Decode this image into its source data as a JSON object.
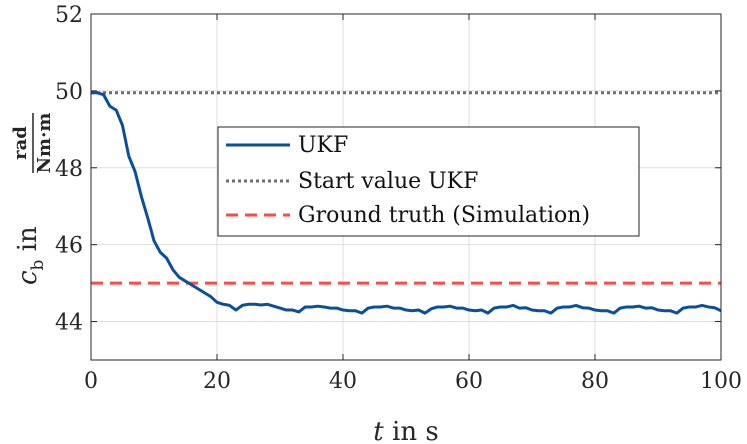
{
  "chart_data": {
    "type": "line",
    "xlabel": {
      "var": "t",
      "rest": " in s"
    },
    "ylabel": {
      "var": "c",
      "sub": "b",
      "mid": " in ",
      "frac_num": "rad",
      "frac_den": "Nm·m"
    },
    "xlim": [
      0,
      100
    ],
    "ylim": [
      43,
      52
    ],
    "xticks": [
      0,
      20,
      40,
      60,
      80,
      100
    ],
    "yticks": [
      44,
      46,
      48,
      50,
      52
    ],
    "xtick_labels": [
      "0",
      "20",
      "40",
      "60",
      "80",
      "100"
    ],
    "ytick_labels": [
      "44",
      "46",
      "48",
      "50",
      "52"
    ],
    "grid": true,
    "legend_position": "center",
    "series": [
      {
        "name": "UKF",
        "style": "solid",
        "color": "#0b4f9c",
        "x": [
          0,
          1,
          2,
          3,
          4,
          5,
          6,
          7,
          8,
          9,
          10,
          11,
          12,
          13,
          14,
          15,
          16,
          17,
          18,
          19,
          20,
          21,
          22,
          23,
          24,
          25,
          26,
          27,
          28,
          29,
          30,
          31,
          32,
          33,
          34,
          35,
          36,
          37,
          38,
          39,
          40,
          41,
          42,
          43,
          44,
          45,
          46,
          47,
          48,
          49,
          50,
          51,
          52,
          53,
          54,
          55,
          56,
          57,
          58,
          59,
          60,
          61,
          62,
          63,
          64,
          65,
          66,
          67,
          68,
          69,
          70,
          71,
          72,
          73,
          74,
          75,
          76,
          77,
          78,
          79,
          80,
          81,
          82,
          83,
          84,
          85,
          86,
          87,
          88,
          89,
          90,
          91,
          92,
          93,
          94,
          95,
          96,
          97,
          98,
          99,
          100
        ],
        "y": [
          49.95,
          49.95,
          49.9,
          49.6,
          49.5,
          49.1,
          48.3,
          47.9,
          47.25,
          46.7,
          46.1,
          45.8,
          45.65,
          45.35,
          45.15,
          45.05,
          44.95,
          44.85,
          44.75,
          44.65,
          44.5,
          44.45,
          44.42,
          44.3,
          44.42,
          44.45,
          44.45,
          44.43,
          44.45,
          44.4,
          44.35,
          44.3,
          44.3,
          44.25,
          44.38,
          44.38,
          44.4,
          44.38,
          44.35,
          44.35,
          44.3,
          44.28,
          44.28,
          44.22,
          44.35,
          44.38,
          44.38,
          44.4,
          44.35,
          44.35,
          44.3,
          44.28,
          44.3,
          44.22,
          44.33,
          44.38,
          44.38,
          44.4,
          44.35,
          44.35,
          44.3,
          44.28,
          44.3,
          44.22,
          44.35,
          44.38,
          44.38,
          44.42,
          44.35,
          44.36,
          44.3,
          44.28,
          44.28,
          44.22,
          44.35,
          44.38,
          44.38,
          44.42,
          44.36,
          44.35,
          44.3,
          44.28,
          44.28,
          44.22,
          44.35,
          44.38,
          44.38,
          44.4,
          44.35,
          44.36,
          44.3,
          44.28,
          44.28,
          44.22,
          44.35,
          44.38,
          44.38,
          44.42,
          44.38,
          44.36,
          44.28
        ]
      },
      {
        "name": "Start value UKF",
        "style": "dotted",
        "color": "#6e6e6e",
        "x": [
          0,
          100
        ],
        "y": [
          49.95,
          49.95
        ]
      },
      {
        "name": "Ground truth (Simulation)",
        "style": "dashed",
        "color": "#ff4a4a",
        "x": [
          0,
          100
        ],
        "y": [
          45.0,
          45.0
        ]
      }
    ]
  }
}
